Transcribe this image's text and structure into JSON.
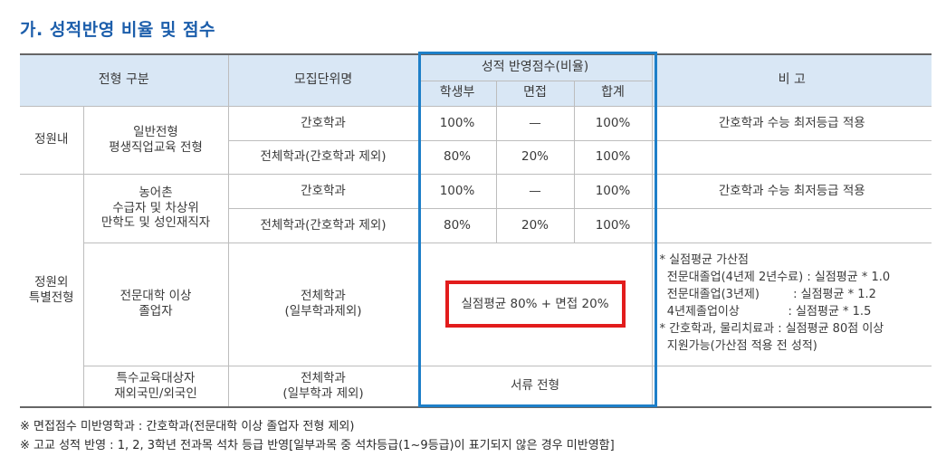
{
  "title": "가. 성적반영 비율 및 점수",
  "header": {
    "type": "전형 구분",
    "unit": "모집단위명",
    "score_group": "성적 반영점수(비율)",
    "school": "학생부",
    "interview": "면접",
    "total": "합계",
    "remark": "비 고"
  },
  "rows": {
    "r1": {
      "category": "정원내",
      "type": "일반전형\n평생직업교육 전형",
      "unit": "간호학과",
      "school": "100%",
      "interview": "—",
      "total": "100%",
      "remark": "간호학과 수능 최저등급 적용"
    },
    "r2": {
      "unit": "전체학과(간호학과 제외)",
      "school": "80%",
      "interview": "20%",
      "total": "100%",
      "remark": ""
    },
    "r3": {
      "category": "정원외\n특별전형",
      "type": "농어촌\n수급자 및 차상위\n만학도 및 성인재직자",
      "unit": "간호학과",
      "school": "100%",
      "interview": "—",
      "total": "100%",
      "remark": "간호학과 수능 최저등급 적용"
    },
    "r4": {
      "unit": "전체학과(간호학과 제외)",
      "school": "80%",
      "interview": "20%",
      "total": "100%",
      "remark": ""
    },
    "r5": {
      "type": "전문대학 이상\n졸업자",
      "unit": "전체학과\n(일부학과제외)",
      "score": "실점평균 80% + 면접 20%",
      "remark_lines": [
        "* 실점평균 가산점",
        "  전문대졸업(4년제 2년수료) : 실점평균 * 1.0",
        "  전문대졸업(3년제)         : 실점평균 * 1.2",
        "  4년제졸업이상             : 실점평균 * 1.5",
        "* 간호학과, 물리치료과 : 실점평균 80점 이상",
        "  지원가능(가산점 적용 전 성적)"
      ]
    },
    "r6": {
      "type": "특수교육대상자\n재외국민/외국인",
      "unit": "전체학과\n(일부학과 제외)",
      "score": "서류 전형",
      "remark": ""
    }
  },
  "notes": [
    "※ 면접점수 미반영학과 : 간호학과(전문대학 이상 졸업자 전형 제외)",
    "※ 고교 성적 반영 : 1, 2, 3학년 전과목 석차 등급 반영[일부과목 중 석차등급(1~9등급)이 표기되지 않은 경우 미반영함]"
  ],
  "colors": {
    "title": "#1c5eab",
    "header_bg": "#d9e7f5",
    "highlight_blue": "#1e7fc8",
    "highlight_red": "#e21c1c"
  }
}
